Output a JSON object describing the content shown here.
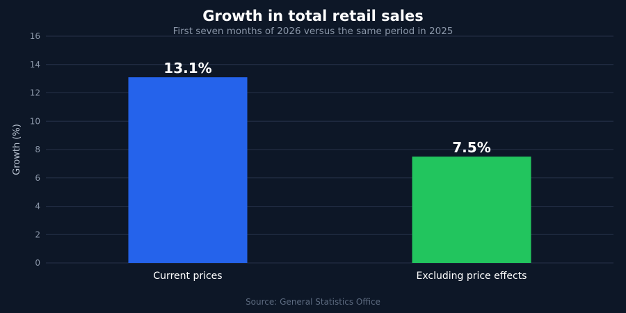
{
  "chart_data": {
    "type": "bar",
    "title": "Growth in total retail sales",
    "subtitle": "First seven months of 2026 versus the same period in 2025",
    "categories": [
      "Current prices",
      "Excluding price effects"
    ],
    "values": [
      13.1,
      7.5
    ],
    "data_labels": [
      "13.1%",
      "7.5%"
    ],
    "bar_colors": [
      "#2563eb",
      "#22c55e"
    ],
    "xlabel": "",
    "ylabel": "Growth (%)",
    "ylim": [
      0,
      16
    ],
    "yticks": [
      0,
      2,
      4,
      6,
      8,
      10,
      12,
      14,
      16
    ],
    "grid": true,
    "legend": "none",
    "source": "Source: General Statistics Office"
  }
}
